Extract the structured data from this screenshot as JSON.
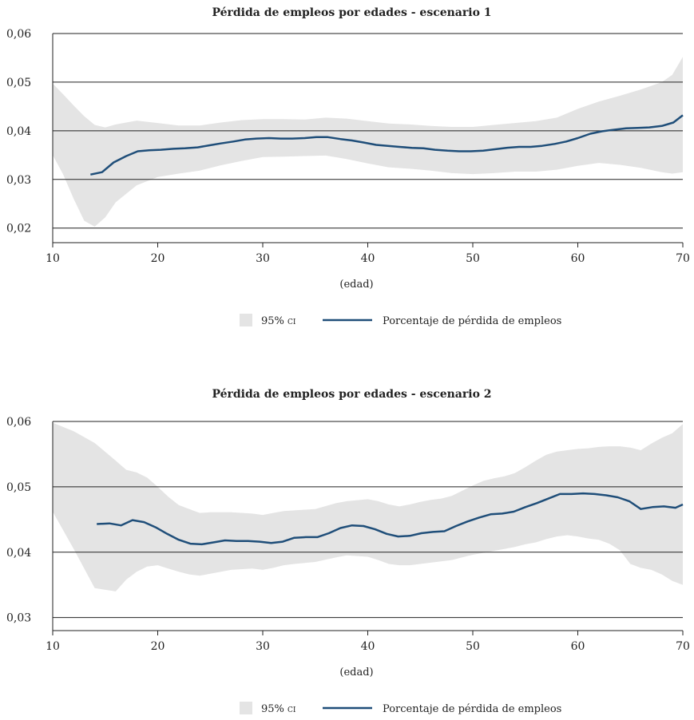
{
  "colors": {
    "line": "#1f4e79",
    "band": "#e4e4e4",
    "axis": "#222222"
  },
  "charts": [
    {
      "type": "line",
      "title": "Pérdida de empleos por edades - escenario 1",
      "xlabel": "(edad)",
      "ylabel": "",
      "xlim": [
        10,
        70
      ],
      "ylim": [
        0.017,
        0.06
      ],
      "xticks": [
        "10",
        "20",
        "30",
        "40",
        "50",
        "60",
        "70"
      ],
      "yticks": [
        {
          "v": 0.02,
          "label": "0,02"
        },
        {
          "v": 0.03,
          "label": "0,03"
        },
        {
          "v": 0.04,
          "label": "0,04"
        },
        {
          "v": 0.05,
          "label": "0,05"
        },
        {
          "v": 0.06,
          "label": "0,06"
        }
      ],
      "grid": "horizontal",
      "legend": {
        "position": "bottom",
        "band_label": "95%",
        "band_label_small": "CI",
        "line_label": "Porcentaje de pérdida de empleos"
      },
      "band": {
        "x": [
          10,
          11,
          12,
          13,
          14,
          15,
          16,
          18,
          20,
          22,
          24,
          26,
          28,
          30,
          32,
          34,
          36,
          38,
          40,
          42,
          44,
          46,
          48,
          50,
          52,
          54,
          56,
          58,
          60,
          62,
          64,
          66,
          68,
          69,
          70
        ],
        "upper": [
          0.0497,
          0.0475,
          0.0452,
          0.043,
          0.0412,
          0.0407,
          0.0413,
          0.0421,
          0.0416,
          0.0411,
          0.0411,
          0.0417,
          0.0422,
          0.0424,
          0.0424,
          0.0423,
          0.0427,
          0.0425,
          0.042,
          0.0415,
          0.0413,
          0.041,
          0.0408,
          0.0408,
          0.0412,
          0.0416,
          0.042,
          0.0427,
          0.0445,
          0.046,
          0.0472,
          0.0485,
          0.05,
          0.0515,
          0.0552
        ],
        "lower": [
          0.035,
          0.031,
          0.026,
          0.0215,
          0.0203,
          0.0222,
          0.0253,
          0.0288,
          0.0305,
          0.0312,
          0.0318,
          0.0329,
          0.0338,
          0.0346,
          0.0347,
          0.0348,
          0.0349,
          0.0342,
          0.0333,
          0.0325,
          0.0322,
          0.0318,
          0.0313,
          0.0311,
          0.0313,
          0.0316,
          0.0316,
          0.032,
          0.0328,
          0.0334,
          0.033,
          0.0324,
          0.0315,
          0.0312,
          0.0315
        ]
      },
      "series": [
        {
          "name": "Porcentaje de pérdida de empleos",
          "x": [
            13.6,
            14.7,
            15.8,
            17.0,
            18.1,
            19.2,
            20.3,
            21.5,
            22.6,
            23.8,
            24.9,
            26.0,
            27.2,
            28.3,
            29.4,
            30.6,
            31.7,
            32.8,
            34.0,
            35.1,
            36.2,
            37.4,
            38.5,
            39.6,
            40.8,
            41.9,
            43.0,
            44.2,
            45.3,
            46.4,
            47.6,
            48.7,
            49.8,
            51.0,
            52.1,
            53.2,
            54.4,
            55.5,
            56.6,
            57.8,
            58.9,
            60.0,
            61.2,
            62.3,
            63.4,
            64.6,
            65.7,
            66.8,
            68.0,
            69.1,
            70.0
          ],
          "values": [
            0.031,
            0.0315,
            0.0335,
            0.0348,
            0.0358,
            0.036,
            0.0361,
            0.0363,
            0.0364,
            0.0366,
            0.037,
            0.0374,
            0.0378,
            0.0382,
            0.0384,
            0.0385,
            0.0384,
            0.0384,
            0.0385,
            0.0387,
            0.0387,
            0.0383,
            0.038,
            0.0376,
            0.0371,
            0.0369,
            0.0367,
            0.0365,
            0.0364,
            0.0361,
            0.0359,
            0.0358,
            0.0358,
            0.0359,
            0.0362,
            0.0365,
            0.0367,
            0.0367,
            0.0369,
            0.0373,
            0.0378,
            0.0385,
            0.0394,
            0.0399,
            0.0402,
            0.0405,
            0.0406,
            0.0407,
            0.041,
            0.0417,
            0.0432
          ]
        }
      ]
    },
    {
      "type": "line",
      "title": "Pérdida de empleos por edades - escenario 2",
      "xlabel": "(edad)",
      "ylabel": "",
      "xlim": [
        10,
        70
      ],
      "ylim": [
        0.028,
        0.06
      ],
      "xticks": [
        "10",
        "20",
        "30",
        "40",
        "50",
        "60",
        "70"
      ],
      "yticks": [
        {
          "v": 0.03,
          "label": "0,03"
        },
        {
          "v": 0.04,
          "label": "0,04"
        },
        {
          "v": 0.05,
          "label": "0,05"
        },
        {
          "v": 0.06,
          "label": "0,06"
        }
      ],
      "grid": "horizontal",
      "legend": {
        "position": "bottom",
        "band_label": "95%",
        "band_label_small": "CI",
        "line_label": "Porcentaje de pérdida de empleos"
      },
      "band": {
        "x": [
          10,
          12,
          14,
          16,
          17,
          18,
          19,
          20,
          21,
          22,
          23,
          24,
          25,
          27,
          29,
          30,
          31,
          32,
          33,
          35,
          37,
          38,
          40,
          41,
          42,
          43,
          44,
          45,
          46,
          47,
          48,
          49,
          50,
          51,
          52,
          53,
          54,
          55,
          56,
          57,
          58,
          59,
          60,
          61,
          62,
          63,
          64,
          65,
          66,
          67,
          68,
          69,
          70
        ],
        "upper": [
          0.0598,
          0.0585,
          0.0567,
          0.054,
          0.0526,
          0.0522,
          0.0514,
          0.05,
          0.0485,
          0.0472,
          0.0466,
          0.046,
          0.0461,
          0.0461,
          0.0459,
          0.0457,
          0.046,
          0.0463,
          0.0464,
          0.0466,
          0.0475,
          0.0478,
          0.0481,
          0.0478,
          0.0473,
          0.047,
          0.0473,
          0.0477,
          0.048,
          0.0482,
          0.0486,
          0.0494,
          0.0502,
          0.0509,
          0.0513,
          0.0516,
          0.0521,
          0.053,
          0.054,
          0.0549,
          0.0554,
          0.0556,
          0.0558,
          0.0559,
          0.0561,
          0.0562,
          0.0562,
          0.056,
          0.0556,
          0.0566,
          0.0575,
          0.0582,
          0.0596
        ],
        "lower": [
          0.0462,
          0.0405,
          0.0345,
          0.034,
          0.0358,
          0.037,
          0.0378,
          0.038,
          0.0375,
          0.037,
          0.0366,
          0.0364,
          0.0367,
          0.0373,
          0.0375,
          0.0373,
          0.0376,
          0.038,
          0.0382,
          0.0385,
          0.0392,
          0.0395,
          0.0393,
          0.0388,
          0.0382,
          0.038,
          0.038,
          0.0382,
          0.0384,
          0.0386,
          0.0388,
          0.0392,
          0.0396,
          0.0399,
          0.0402,
          0.0405,
          0.0408,
          0.0412,
          0.0415,
          0.042,
          0.0424,
          0.0426,
          0.0424,
          0.0421,
          0.0419,
          0.0413,
          0.0403,
          0.0382,
          0.0376,
          0.0373,
          0.0366,
          0.0356,
          0.035
        ]
      },
      "series": [
        {
          "name": "Porcentaje de pérdida de empleos",
          "x": [
            14.2,
            15.4,
            16.5,
            17.6,
            18.7,
            19.8,
            20.9,
            22.0,
            23.1,
            24.2,
            25.3,
            26.4,
            27.5,
            28.6,
            29.7,
            30.8,
            31.9,
            33.0,
            34.1,
            35.2,
            36.3,
            37.4,
            38.5,
            39.6,
            40.7,
            41.8,
            42.9,
            44.0,
            45.1,
            46.2,
            47.3,
            48.4,
            49.5,
            50.6,
            51.7,
            52.8,
            53.9,
            55.0,
            56.1,
            57.2,
            58.3,
            59.4,
            60.5,
            61.6,
            62.7,
            63.8,
            64.9,
            66.0,
            67.1,
            68.2,
            69.3,
            70.0
          ],
          "values": [
            0.0443,
            0.0444,
            0.0441,
            0.0449,
            0.0446,
            0.0438,
            0.0428,
            0.0419,
            0.0413,
            0.0412,
            0.0415,
            0.0418,
            0.0417,
            0.0417,
            0.0416,
            0.0414,
            0.0416,
            0.0422,
            0.0423,
            0.0423,
            0.0429,
            0.0437,
            0.0441,
            0.044,
            0.0435,
            0.0428,
            0.0424,
            0.0425,
            0.0429,
            0.0431,
            0.0432,
            0.044,
            0.0447,
            0.0453,
            0.0458,
            0.0459,
            0.0462,
            0.0469,
            0.0475,
            0.0482,
            0.0489,
            0.0489,
            0.049,
            0.0489,
            0.0487,
            0.0484,
            0.0478,
            0.0466,
            0.0469,
            0.047,
            0.0468,
            0.0473
          ]
        }
      ]
    }
  ]
}
